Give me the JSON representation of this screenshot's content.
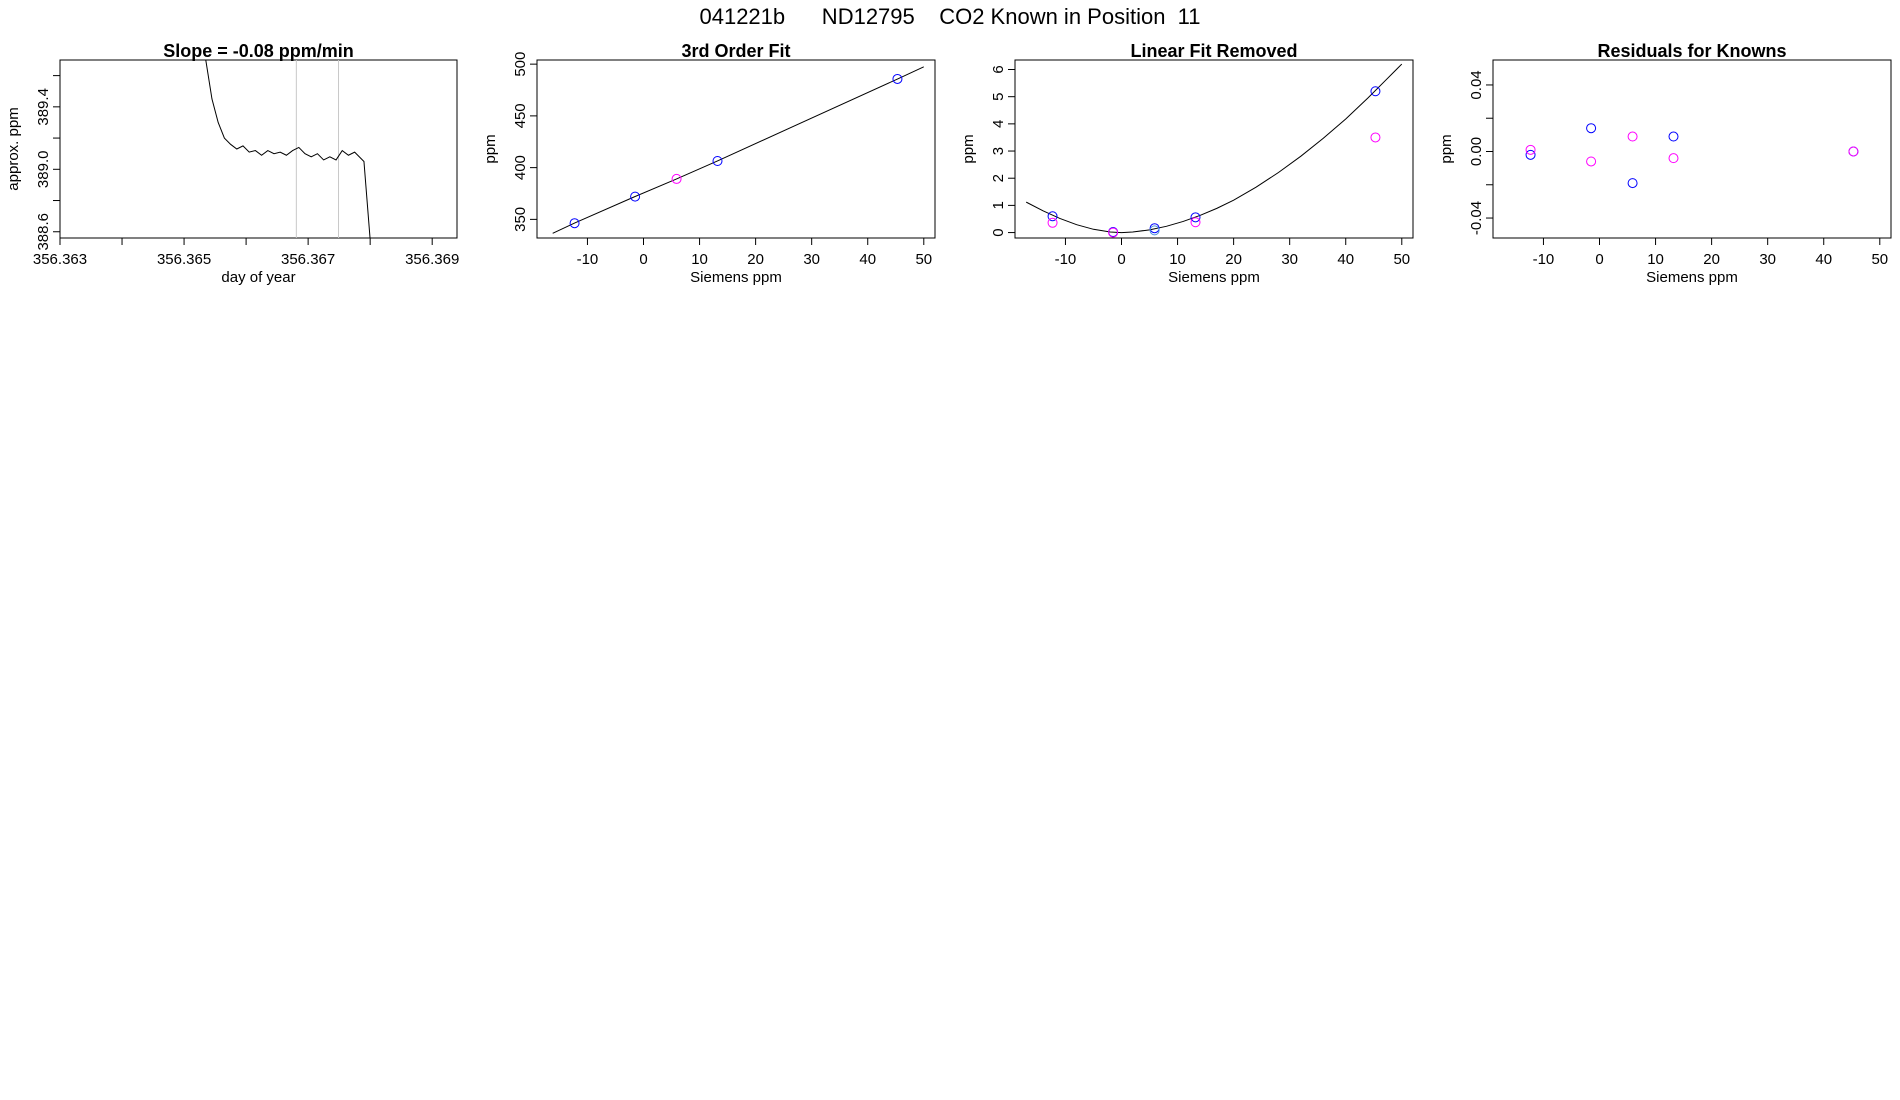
{
  "page_title": "041221b      ND12795    CO2 Known in Position  11",
  "chart_data": [
    {
      "type": "line",
      "title": "Slope =  -0.08  ppm/min",
      "xlabel": "day of year",
      "ylabel": "approx. ppm",
      "xlim": [
        356.363,
        356.3694
      ],
      "ylim": [
        388.56,
        389.7
      ],
      "xticks": [
        356.363,
        356.364,
        356.365,
        356.366,
        356.367,
        356.368,
        356.369
      ],
      "xtick_labels": [
        "356.363",
        "",
        "356.365",
        "",
        "356.367",
        "",
        "356.369"
      ],
      "yticks": [
        388.6,
        388.8,
        389.0,
        389.2,
        389.4,
        389.6
      ],
      "ytick_labels": [
        "388.6",
        "",
        "389.0",
        "",
        "389.4",
        ""
      ],
      "vlines": [
        356.36681,
        356.36749
      ],
      "vline_color": "#c8c8c8",
      "line_color": "#000000",
      "series": [
        {
          "x": [
            356.36535,
            356.36545,
            356.36555,
            356.36565,
            356.36575,
            356.36585,
            356.36595,
            356.36605,
            356.36615,
            356.36625,
            356.36635,
            356.36645,
            356.36655,
            356.36665,
            356.36675,
            356.36685,
            356.36695,
            356.36705,
            356.36715,
            356.36725,
            356.36735,
            356.36745,
            356.36755,
            356.36765,
            356.36775,
            356.36785,
            356.3679,
            356.36795,
            356.368
          ],
          "y": [
            389.7,
            389.45,
            389.3,
            389.2,
            389.16,
            389.13,
            389.15,
            389.11,
            389.12,
            389.09,
            389.12,
            389.1,
            389.11,
            389.09,
            389.12,
            389.14,
            389.1,
            389.08,
            389.1,
            389.06,
            389.08,
            389.06,
            389.12,
            389.09,
            389.11,
            389.07,
            389.05,
            388.8,
            388.55
          ]
        }
      ]
    },
    {
      "type": "scatter",
      "title": "3rd Order Fit",
      "xlabel": "Siemens ppm",
      "ylabel": "ppm",
      "xlim": [
        -19,
        52
      ],
      "ylim": [
        332,
        504
      ],
      "xticks": [
        -10,
        0,
        10,
        20,
        30,
        40,
        50
      ],
      "xtick_labels": [
        "-10",
        "0",
        "10",
        "20",
        "30",
        "40",
        "50"
      ],
      "yticks": [
        350,
        400,
        450,
        500
      ],
      "ytick_labels": [
        "350",
        "400",
        "450",
        "500"
      ],
      "fit_line": {
        "x": [
          -16.2,
          -12.3,
          -1.5,
          5.9,
          13.2,
          45.3,
          50.0
        ],
        "y": [
          336.5,
          346.4,
          372.1,
          389.1,
          406.5,
          485.6,
          497.4
        ]
      },
      "series": [
        {
          "color": "#0000ff",
          "x": [
            -12.3,
            -1.5,
            13.2,
            45.3
          ],
          "y": [
            346.3,
            372.0,
            406.4,
            485.7
          ]
        },
        {
          "color": "#ff00ff",
          "x": [
            5.9
          ],
          "y": [
            389.1
          ]
        }
      ]
    },
    {
      "type": "scatter",
      "title": "Linear Fit Removed",
      "xlabel": "Siemens ppm",
      "ylabel": "ppm",
      "xlim": [
        -19,
        52
      ],
      "ylim": [
        -0.2,
        6.35
      ],
      "xticks": [
        -10,
        0,
        10,
        20,
        30,
        40,
        50
      ],
      "xtick_labels": [
        "-10",
        "0",
        "10",
        "20",
        "30",
        "40",
        "50"
      ],
      "yticks": [
        0,
        1,
        2,
        3,
        4,
        5,
        6
      ],
      "ytick_labels": [
        "0",
        "1",
        "2",
        "3",
        "4",
        "5",
        "6"
      ],
      "fit_line": {
        "x": [
          -17,
          -14,
          -11,
          -8,
          -5,
          -2,
          0,
          2,
          5,
          8,
          11,
          14,
          17,
          20,
          24,
          28,
          32,
          36,
          40,
          44,
          47,
          50
        ],
        "y": [
          1.12,
          0.8,
          0.52,
          0.29,
          0.12,
          0.02,
          0.0,
          0.02,
          0.1,
          0.23,
          0.41,
          0.63,
          0.89,
          1.19,
          1.67,
          2.21,
          2.81,
          3.47,
          4.18,
          4.96,
          5.58,
          6.2
        ]
      },
      "series": [
        {
          "color": "#0000ff",
          "x": [
            -12.3,
            -1.5,
            5.9,
            13.2,
            45.3
          ],
          "y": [
            0.6,
            0.02,
            0.16,
            0.56,
            5.2
          ]
        },
        {
          "color": "#ff00ff",
          "x": [
            -12.3,
            -1.5,
            13.2,
            45.3
          ],
          "y": [
            0.36,
            0.0,
            0.38,
            3.5
          ]
        },
        {
          "color": "#4a90d9",
          "x": [
            5.9
          ],
          "y": [
            0.08
          ]
        }
      ]
    },
    {
      "type": "scatter",
      "title": "Residuals for Knowns",
      "xlabel": "Siemens ppm",
      "ylabel": "ppm",
      "xlim": [
        -19,
        52
      ],
      "ylim": [
        -0.052,
        0.055
      ],
      "xticks": [
        -10,
        0,
        10,
        20,
        30,
        40,
        50
      ],
      "xtick_labels": [
        "-10",
        "0",
        "10",
        "20",
        "30",
        "40",
        "50"
      ],
      "yticks": [
        -0.04,
        -0.02,
        0.0,
        0.02,
        0.04
      ],
      "ytick_labels": [
        "-0.04",
        "",
        "0.00",
        "",
        "0.04"
      ],
      "series": [
        {
          "color": "#0000ff",
          "x": [
            -12.3,
            -1.5,
            5.9,
            13.2,
            45.3
          ],
          "y": [
            -0.002,
            0.014,
            -0.019,
            0.009,
            0.0
          ]
        },
        {
          "color": "#ff00ff",
          "x": [
            -12.3,
            -1.5,
            5.9,
            13.2,
            45.3
          ],
          "y": [
            0.001,
            -0.006,
            0.009,
            -0.004,
            0.0
          ]
        }
      ]
    }
  ]
}
